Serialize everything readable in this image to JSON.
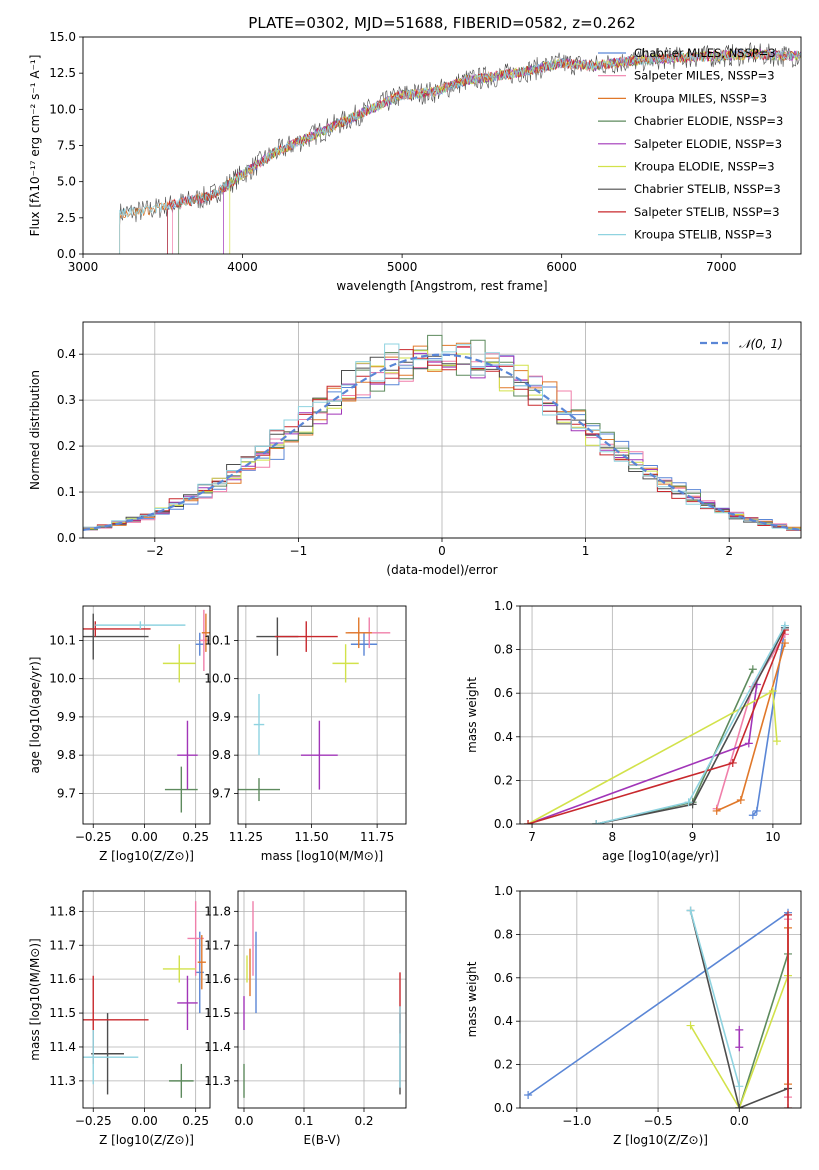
{
  "figure": {
    "title": "PLATE=0302, MJD=51688, FIBERID=0582, z=0.262"
  },
  "series_styles": [
    {
      "name": "Chabrier MILES",
      "color": "#5a86d6"
    },
    {
      "name": "Salpeter MILES",
      "color": "#f07faa"
    },
    {
      "name": "Kroupa MILES",
      "color": "#e0782a"
    },
    {
      "name": "Chabrier ELODIE",
      "color": "#5d8a5d"
    },
    {
      "name": "Salpeter ELODIE",
      "color": "#a135b8"
    },
    {
      "name": "Kroupa ELODIE",
      "color": "#d2e24a"
    },
    {
      "name": "Chabrier STELIB",
      "color": "#4d4d4d"
    },
    {
      "name": "Salpeter STELIB",
      "color": "#c8282d"
    },
    {
      "name": "Kroupa STELIB",
      "color": "#8fd3e0"
    }
  ],
  "chart_data": [
    {
      "id": "spectrum",
      "type": "line",
      "title": "PLATE=0302, MJD=51688, FIBERID=0582, z=0.262",
      "xlabel": "wavelength [Angstrom, rest frame]",
      "ylabel": "Flux [fλ10⁻¹⁷ erg cm⁻² s⁻¹ A⁻¹]",
      "xlim": [
        3000,
        7500
      ],
      "ylim": [
        0,
        15
      ],
      "xticks": [
        3000,
        4000,
        5000,
        6000,
        7000
      ],
      "yticks": [
        0.0,
        2.5,
        5.0,
        7.5,
        10.0,
        12.5,
        15.0
      ],
      "legend_position": "right",
      "legend": [
        "Chabrier MILES, NSSP=3",
        "Salpeter MILES, NSSP=3",
        "Kroupa MILES, NSSP=3",
        "Chabrier ELODIE, NSSP=3",
        "Salpeter ELODIE, NSSP=3",
        "Kroupa ELODIE, NSSP=3",
        "Chabrier STELIB, NSSP=3",
        "Salpeter STELIB, NSSP=3",
        "Kroupa STELIB, NSSP=3"
      ],
      "data_trend": {
        "x": [
          3230,
          3400,
          3600,
          3800,
          4000,
          4200,
          4400,
          4600,
          4800,
          5000,
          5200,
          5400,
          5600,
          5800,
          6000,
          6200,
          6400,
          6600,
          6800,
          7000,
          7200,
          7400
        ],
        "y": [
          2.8,
          3.0,
          3.5,
          4.0,
          5.5,
          7.0,
          8.0,
          9.0,
          10.0,
          11.0,
          11.2,
          12.0,
          12.3,
          12.7,
          13.2,
          13.0,
          13.3,
          13.5,
          13.6,
          13.7,
          13.8,
          13.7
        ]
      },
      "grid": false
    },
    {
      "id": "residuals",
      "type": "line",
      "xlabel": "(data-model)/error",
      "ylabel": "Normed distribution",
      "xlim": [
        -2.5,
        2.5
      ],
      "ylim": [
        0,
        0.47
      ],
      "xticks": [
        -2,
        -1,
        0,
        1,
        2
      ],
      "yticks": [
        0.0,
        0.1,
        0.2,
        0.3,
        0.4
      ],
      "legend": [
        "𝒩(0, 1)"
      ],
      "legend_position": "top-right",
      "reference_curve": "N(0,1)",
      "grid": true
    },
    {
      "id": "age_vs_Z",
      "type": "scatter",
      "xlabel": "Z [log10(Z/Z⊙)]",
      "ylabel": "age  [log10(age/yr)]",
      "xlim": [
        -0.3,
        0.32
      ],
      "ylim": [
        9.62,
        10.19
      ],
      "xticks": [
        -0.25,
        0.0,
        0.25
      ],
      "yticks": [
        9.7,
        9.8,
        9.9,
        10.0,
        10.1
      ],
      "points": [
        {
          "series": "Chabrier MILES",
          "x": 0.27,
          "y": 10.09,
          "xerr": 0.02,
          "yerr": 0.03
        },
        {
          "series": "Salpeter MILES",
          "x": 0.29,
          "y": 10.1,
          "xerr": 0.02,
          "yerr": 0.08
        },
        {
          "series": "Kroupa MILES",
          "x": 0.3,
          "y": 10.12,
          "xerr": 0.02,
          "yerr": 0.05
        },
        {
          "series": "Chabrier ELODIE",
          "x": 0.18,
          "y": 9.71,
          "xerr": 0.08,
          "yerr": 0.06
        },
        {
          "series": "Salpeter ELODIE",
          "x": 0.21,
          "y": 9.8,
          "xerr": 0.05,
          "yerr": 0.09
        },
        {
          "series": "Kroupa ELODIE",
          "x": 0.17,
          "y": 10.04,
          "xerr": 0.08,
          "yerr": 0.05
        },
        {
          "series": "Chabrier STELIB",
          "x": -0.25,
          "y": 10.11,
          "xerr": 0.27,
          "yerr": 0.06
        },
        {
          "series": "Salpeter STELIB",
          "x": -0.24,
          "y": 10.13,
          "xerr": 0.27,
          "yerr": 0.02
        },
        {
          "series": "Kroupa STELIB",
          "x": -0.02,
          "y": 10.14,
          "xerr": 0.22,
          "yerr": 0.01
        }
      ],
      "grid": true
    },
    {
      "id": "age_vs_mass",
      "type": "scatter",
      "xlabel": "mass [log10(M/M⊙)]",
      "ylabel": "",
      "xlim": [
        11.22,
        11.86
      ],
      "ylim": [
        9.62,
        10.19
      ],
      "xticks": [
        11.25,
        11.5,
        11.75
      ],
      "yticks": [
        9.7,
        9.8,
        9.9,
        10.0,
        10.1
      ],
      "points": [
        {
          "series": "Chabrier MILES",
          "x": 11.7,
          "y": 10.09,
          "xerr": 0.05,
          "yerr": 0.03
        },
        {
          "series": "Salpeter MILES",
          "x": 11.72,
          "y": 10.12,
          "xerr": 0.08,
          "yerr": 0.04
        },
        {
          "series": "Kroupa MILES",
          "x": 11.68,
          "y": 10.12,
          "xerr": 0.05,
          "yerr": 0.04
        },
        {
          "series": "Chabrier ELODIE",
          "x": 11.3,
          "y": 9.71,
          "xerr": 0.08,
          "yerr": 0.03
        },
        {
          "series": "Salpeter ELODIE",
          "x": 11.53,
          "y": 9.8,
          "xerr": 0.07,
          "yerr": 0.09
        },
        {
          "series": "Kroupa ELODIE",
          "x": 11.63,
          "y": 10.04,
          "xerr": 0.05,
          "yerr": 0.05
        },
        {
          "series": "Chabrier STELIB",
          "x": 11.37,
          "y": 10.11,
          "xerr": 0.08,
          "yerr": 0.05
        },
        {
          "series": "Salpeter STELIB",
          "x": 11.48,
          "y": 10.11,
          "xerr": 0.12,
          "yerr": 0.04
        },
        {
          "series": "Kroupa STELIB",
          "x": 11.3,
          "y": 9.88,
          "xerr": 0.02,
          "yerr": 0.08
        }
      ],
      "grid": true
    },
    {
      "id": "massweight_vs_age",
      "type": "line",
      "xlabel": "age  [log10(age/yr)]",
      "ylabel": "mass weight",
      "xlim": [
        6.85,
        10.35
      ],
      "ylim": [
        0,
        1.0
      ],
      "xticks": [
        7,
        8,
        9,
        10
      ],
      "yticks": [
        0.0,
        0.2,
        0.4,
        0.6,
        0.8,
        1.0
      ],
      "series": [
        {
          "name": "Chabrier MILES",
          "x": [
            9.75,
            9.8,
            10.15
          ],
          "y": [
            0.04,
            0.06,
            0.9
          ]
        },
        {
          "name": "Salpeter MILES",
          "x": [
            9.3,
            9.75,
            10.15
          ],
          "y": [
            0.07,
            0.63,
            0.87
          ]
        },
        {
          "name": "Kroupa MILES",
          "x": [
            9.3,
            9.6,
            10.15
          ],
          "y": [
            0.06,
            0.11,
            0.83
          ]
        },
        {
          "name": "Chabrier ELODIE",
          "x": [
            7.8,
            9.0,
            9.75
          ],
          "y": [
            0.0,
            0.1,
            0.71
          ]
        },
        {
          "name": "Salpeter ELODIE",
          "x": [
            6.95,
            9.7,
            9.8
          ],
          "y": [
            0.0,
            0.37,
            0.64
          ]
        },
        {
          "name": "Kroupa ELODIE",
          "x": [
            6.95,
            10.0,
            10.05
          ],
          "y": [
            0.0,
            0.61,
            0.38
          ]
        },
        {
          "name": "Chabrier STELIB",
          "x": [
            7.8,
            9.0,
            10.15
          ],
          "y": [
            0.0,
            0.09,
            0.9
          ]
        },
        {
          "name": "Salpeter STELIB",
          "x": [
            6.95,
            9.5,
            10.15
          ],
          "y": [
            0.0,
            0.28,
            0.89
          ]
        },
        {
          "name": "Kroupa STELIB",
          "x": [
            7.8,
            8.95,
            10.15
          ],
          "y": [
            0.0,
            0.1,
            0.91
          ]
        }
      ],
      "grid": true
    },
    {
      "id": "mass_vs_Z",
      "type": "scatter",
      "xlabel": "Z [log10(Z/Z⊙)]",
      "ylabel": "mass [log10(M/M⊙)]",
      "xlim": [
        -0.3,
        0.32
      ],
      "ylim": [
        11.22,
        11.86
      ],
      "xticks": [
        -0.25,
        0.0,
        0.25
      ],
      "yticks": [
        11.3,
        11.4,
        11.5,
        11.6,
        11.7,
        11.8
      ],
      "points": [
        {
          "series": "Chabrier MILES",
          "x": 0.27,
          "y": 11.62,
          "xerr": 0.02,
          "yerr": 0.12
        },
        {
          "series": "Salpeter MILES",
          "x": 0.25,
          "y": 11.72,
          "xerr": 0.04,
          "yerr": 0.11
        },
        {
          "series": "Kroupa MILES",
          "x": 0.28,
          "y": 11.65,
          "xerr": 0.02,
          "yerr": 0.08
        },
        {
          "series": "Chabrier ELODIE",
          "x": 0.18,
          "y": 11.3,
          "xerr": 0.06,
          "yerr": 0.05
        },
        {
          "series": "Salpeter ELODIE",
          "x": 0.21,
          "y": 11.53,
          "xerr": 0.05,
          "yerr": 0.08
        },
        {
          "series": "Kroupa ELODIE",
          "x": 0.17,
          "y": 11.63,
          "xerr": 0.08,
          "yerr": 0.04
        },
        {
          "series": "Chabrier STELIB",
          "x": -0.18,
          "y": 11.38,
          "xerr": 0.08,
          "yerr": 0.12
        },
        {
          "series": "Salpeter STELIB",
          "x": -0.25,
          "y": 11.48,
          "xerr": 0.27,
          "yerr": 0.13
        },
        {
          "series": "Kroupa STELIB",
          "x": -0.25,
          "y": 11.37,
          "xerr": 0.22,
          "yerr": 0.08
        }
      ],
      "grid": true
    },
    {
      "id": "mass_vs_ebv",
      "type": "scatter",
      "xlabel": "E(B-V)",
      "ylabel": "",
      "xlim": [
        -0.01,
        0.27
      ],
      "ylim": [
        11.22,
        11.86
      ],
      "xticks": [
        0.0,
        0.1,
        0.2
      ],
      "yticks": [
        11.3,
        11.4,
        11.5,
        11.6,
        11.7,
        11.8
      ],
      "points": [
        {
          "series": "Chabrier MILES",
          "x": 0.02,
          "y": 11.62,
          "yerr": 0.12
        },
        {
          "series": "Salpeter MILES",
          "x": 0.015,
          "y": 11.72,
          "yerr": 0.11
        },
        {
          "series": "Kroupa MILES",
          "x": 0.01,
          "y": 11.62,
          "yerr": 0.07
        },
        {
          "series": "Chabrier ELODIE",
          "x": 0.0,
          "y": 11.3,
          "yerr": 0.05
        },
        {
          "series": "Salpeter ELODIE",
          "x": 0.0,
          "y": 11.5,
          "yerr": 0.05
        },
        {
          "series": "Kroupa ELODIE",
          "x": 0.005,
          "y": 11.63,
          "yerr": 0.04
        },
        {
          "series": "Chabrier STELIB",
          "x": 0.26,
          "y": 11.38,
          "yerr": 0.12
        },
        {
          "series": "Salpeter STELIB",
          "x": 0.26,
          "y": 11.53,
          "yerr": 0.09
        },
        {
          "series": "Kroupa STELIB",
          "x": 0.26,
          "y": 11.4,
          "yerr": 0.12
        }
      ],
      "grid": true
    },
    {
      "id": "massweight_vs_Z",
      "type": "line",
      "xlabel": "Z [log10(Z/Z⊙)]",
      "ylabel": "mass weight",
      "xlim": [
        -1.35,
        0.38
      ],
      "ylim": [
        0,
        1.0
      ],
      "xticks": [
        -1.0,
        -0.5,
        0.0
      ],
      "yticks": [
        0.0,
        0.2,
        0.4,
        0.6,
        0.8,
        1.0
      ],
      "series": [
        {
          "name": "Chabrier MILES",
          "x": [
            -1.3,
            0.3
          ],
          "y": [
            0.06,
            0.9
          ]
        },
        {
          "name": "Salpeter MILES",
          "x": [
            0.3,
            0.3
          ],
          "y": [
            0.05,
            0.87
          ]
        },
        {
          "name": "Kroupa MILES",
          "x": [
            0.3,
            0.3
          ],
          "y": [
            0.11,
            0.83
          ]
        },
        {
          "name": "Chabrier ELODIE",
          "x": [
            0.0,
            0.3
          ],
          "y": [
            0.0,
            0.71
          ]
        },
        {
          "name": "Salpeter ELODIE",
          "x": [
            0.0,
            0.0
          ],
          "y": [
            0.28,
            0.36
          ]
        },
        {
          "name": "Kroupa ELODIE",
          "x": [
            -0.3,
            0.0,
            0.3
          ],
          "y": [
            0.38,
            0.0,
            0.61
          ]
        },
        {
          "name": "Chabrier STELIB",
          "x": [
            -0.3,
            0.0,
            0.3
          ],
          "y": [
            0.91,
            0.0,
            0.09
          ]
        },
        {
          "name": "Salpeter STELIB",
          "x": [
            0.3,
            0.3
          ],
          "y": [
            0.0,
            0.89
          ]
        },
        {
          "name": "Kroupa STELIB",
          "x": [
            -0.3,
            0.0
          ],
          "y": [
            0.91,
            0.1
          ]
        }
      ],
      "grid": true
    }
  ]
}
